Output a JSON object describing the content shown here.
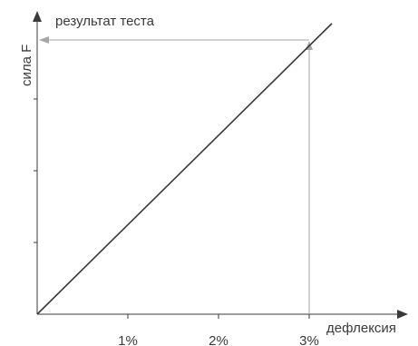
{
  "chart_data": {
    "type": "line",
    "xlabel": "дефлексия",
    "ylabel": "сила F",
    "x_ticks": [
      "1%",
      "2%",
      "3%"
    ],
    "x_tick_values": [
      1,
      2,
      3
    ],
    "xlim": [
      0,
      3
    ],
    "y_ticks": 3,
    "grid": false,
    "legend": "none",
    "series": [
      {
        "x": [
          0,
          3.25
        ],
        "y": [
          0,
          1.06
        ]
      }
    ],
    "annotation": {
      "text": "результат теста",
      "x": 3,
      "y": 1
    },
    "colors": {
      "line": "#3a3a3a",
      "axis": "#3a3a3a",
      "guide": "#a6a6a6",
      "text": "#3a3a3a"
    }
  }
}
